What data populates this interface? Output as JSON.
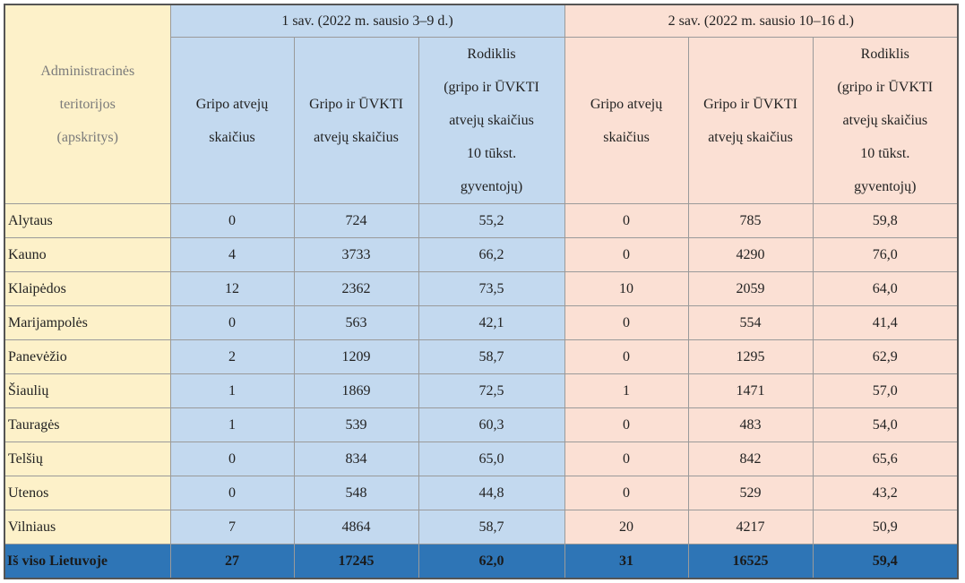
{
  "table": {
    "corner": [
      "Administracinės",
      "teritorijos",
      "(apskritys)"
    ],
    "groups": [
      "1 sav. (2022 m. sausio 3–9 d.)",
      "2 sav. (2022 m. sausio 10–16 d.)"
    ],
    "columns": [
      [
        "Gripo atvejų",
        "skaičius"
      ],
      [
        "Gripo ir ŪVKTI",
        "atvejų skaičius"
      ],
      [
        "Rodiklis",
        "(gripo ir ŪVKTI",
        "atvejų skaičius",
        "10 tūkst.",
        "gyventojų)"
      ],
      [
        "Gripo atvejų",
        "skaičius"
      ],
      [
        "Gripo ir ŪVKTI",
        "atvejų skaičius"
      ],
      [
        "Rodiklis",
        "(gripo ir ŪVKTI",
        "atvejų skaičius",
        "10 tūkst.",
        "gyventojų)"
      ]
    ],
    "rows": [
      [
        "Alytaus",
        "0",
        "724",
        "55,2",
        "0",
        "785",
        "59,8"
      ],
      [
        "Kauno",
        "4",
        "3733",
        "66,2",
        "0",
        "4290",
        "76,0"
      ],
      [
        "Klaipėdos",
        "12",
        "2362",
        "73,5",
        "10",
        "2059",
        "64,0"
      ],
      [
        "Marijampolės",
        "0",
        "563",
        "42,1",
        "0",
        "554",
        "41,4"
      ],
      [
        "Panevėžio",
        "2",
        "1209",
        "58,7",
        "0",
        "1295",
        "62,9"
      ],
      [
        "Šiaulių",
        "1",
        "1869",
        "72,5",
        "1",
        "1471",
        "57,0"
      ],
      [
        "Tauragės",
        "1",
        "539",
        "60,3",
        "0",
        "483",
        "54,0"
      ],
      [
        "Telšių",
        "0",
        "834",
        "65,0",
        "0",
        "842",
        "65,6"
      ],
      [
        "Utenos",
        "0",
        "548",
        "44,8",
        "0",
        "529",
        "43,2"
      ],
      [
        "Vilniaus",
        "7",
        "4864",
        "58,7",
        "20",
        "4217",
        "50,9"
      ]
    ],
    "total": [
      "Iš viso Lietuvoje",
      "27",
      "17245",
      "62,0",
      "31",
      "16525",
      "59,4"
    ]
  }
}
